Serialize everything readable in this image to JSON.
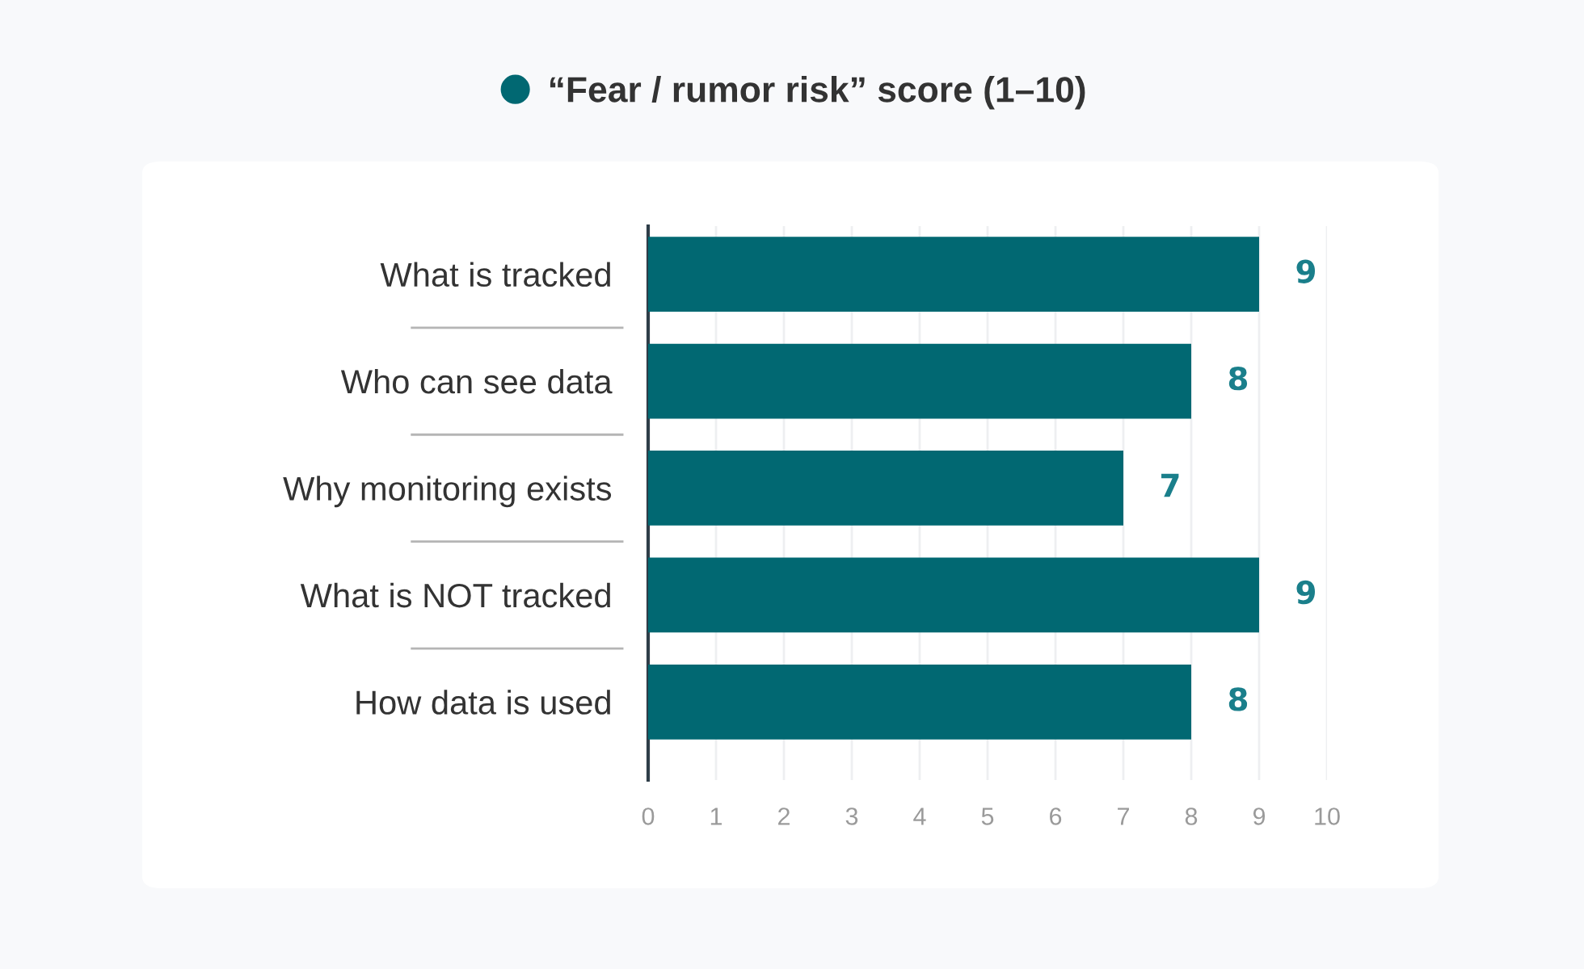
{
  "chart_data": {
    "type": "bar",
    "orientation": "horizontal",
    "categories": [
      "What is tracked",
      "Who can see data",
      "Why monitoring exists",
      "What is NOT tracked",
      "How data is used"
    ],
    "series": [
      {
        "name": "“Fear / rumor risk” score (1–10)",
        "color": "#016872",
        "values": [
          9,
          8,
          7,
          9,
          8
        ]
      }
    ],
    "xlim": [
      0,
      10
    ],
    "xticks": [
      0,
      1,
      2,
      3,
      4,
      5,
      6,
      7,
      8,
      9,
      10
    ],
    "grid": "x",
    "legend": "top",
    "data_labels": true
  }
}
